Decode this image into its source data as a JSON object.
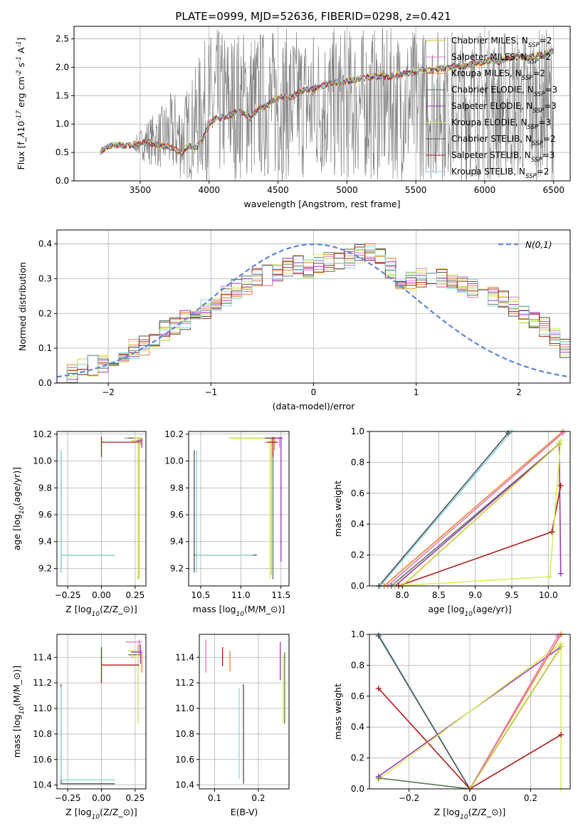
{
  "figure_title": "PLATE=0999, MJD=52636, FIBERID=0298, z=0.421",
  "colors": {
    "data": "#808080",
    "grid": "#b0b0b0",
    "normal_curve": "#5b86d8"
  },
  "models": [
    {
      "label": "Chabrier MILES, N$_{SSP}$=2",
      "name": "Chabrier MILES",
      "nssp": "2",
      "color": "#c8c832"
    },
    {
      "label": "Salpeter MILES, N$_{SSP}$=2",
      "name": "Salpeter MILES",
      "nssp": "2",
      "color": "#e377c2"
    },
    {
      "label": "Kroupa MILES, N$_{SSP}$=2",
      "name": "Kroupa MILES",
      "nssp": "2",
      "color": "#ef7f2a"
    },
    {
      "label": "Chabrier ELODIE, N$_{SSP}$=3",
      "name": "Chabrier ELODIE",
      "nssp": "3",
      "color": "#5a7a5a"
    },
    {
      "label": "Salpeter ELODIE, N$_{SSP}$=3",
      "name": "Salpeter ELODIE",
      "nssp": "3",
      "color": "#9c36b5"
    },
    {
      "label": "Kroupa ELODIE, N$_{SSP}$=3",
      "name": "Kroupa ELODIE",
      "nssp": "3",
      "color": "#d6f05a"
    },
    {
      "label": "Chabrier STELIB, N$_{SSP}$=2",
      "name": "Chabrier STELIB",
      "nssp": "2",
      "color": "#505050"
    },
    {
      "label": "Salpeter STELIB, N$_{SSP}$=3",
      "name": "Salpeter STELIB",
      "nssp": "3",
      "color": "#b01a1a"
    },
    {
      "label": "Kroupa STELIB, N$_{SSP}$=2",
      "name": "Kroupa STELIB",
      "nssp": "2",
      "color": "#8ad8e0"
    }
  ],
  "chart_data": [
    {
      "id": "spectrum",
      "type": "line",
      "xlabel": "wavelength [Angstrom, rest frame]",
      "ylabel": "Flux [f$_\\lambda$10$^{-17}$ erg cm$^{-2}$ s$^{-1}$ A$^{-1}$]",
      "xlim": [
        3020,
        6620
      ],
      "ylim": [
        0,
        2.72
      ],
      "xticks": [
        3500,
        4000,
        4500,
        5000,
        5500,
        6000,
        6500
      ],
      "yticks": [
        0.0,
        0.5,
        1.0,
        1.5,
        2.0,
        2.5
      ],
      "legend": "top-right",
      "x": [
        3210,
        3250,
        3300,
        3350,
        3400,
        3450,
        3500,
        3550,
        3600,
        3650,
        3700,
        3750,
        3800,
        3850,
        3900,
        3950,
        4000,
        4050,
        4100,
        4150,
        4200,
        4250,
        4300,
        4350,
        4400,
        4450,
        4500,
        4550,
        4600,
        4650,
        4700,
        4750,
        4800,
        4850,
        4900,
        4950,
        5000,
        5050,
        5100,
        5150,
        5200,
        5250,
        5300,
        5350,
        5400,
        5450,
        5500,
        5550,
        5600,
        5650,
        5700,
        5750,
        5800,
        5850,
        5900,
        5950,
        6000,
        6050,
        6100,
        6150,
        6200,
        6250,
        6300,
        6350,
        6400,
        6450,
        6500
      ],
      "model_flux": [
        0.52,
        0.58,
        0.62,
        0.63,
        0.61,
        0.63,
        0.66,
        0.68,
        0.65,
        0.62,
        0.6,
        0.55,
        0.5,
        0.62,
        0.58,
        0.7,
        1.0,
        1.1,
        1.12,
        1.15,
        1.22,
        1.2,
        1.1,
        1.25,
        1.3,
        1.4,
        1.45,
        1.5,
        1.48,
        1.55,
        1.6,
        1.62,
        1.65,
        1.7,
        1.72,
        1.74,
        1.75,
        1.78,
        1.8,
        1.82,
        1.84,
        1.85,
        1.82,
        1.86,
        1.88,
        1.9,
        1.92,
        1.95,
        1.94,
        1.96,
        1.98,
        2.0,
        2.02,
        2.0,
        2.05,
        2.08,
        2.1,
        2.12,
        2.1,
        2.15,
        2.18,
        2.2,
        2.15,
        2.2,
        2.22,
        2.25,
        2.28
      ],
      "observed_envelope_top": [
        0.55,
        0.65,
        0.68,
        0.7,
        0.68,
        0.72,
        0.9,
        1.1,
        1.2,
        1.3,
        1.5,
        1.6,
        1.5,
        1.7,
        2.0,
        2.4,
        2.6,
        2.7,
        2.7,
        2.7,
        2.7,
        2.7,
        2.7,
        2.7,
        2.7,
        2.7,
        2.7,
        2.7,
        2.7,
        2.7,
        2.7,
        2.7,
        2.7,
        2.7,
        2.7,
        2.7,
        2.7,
        2.7,
        2.7,
        2.7,
        2.7,
        2.7,
        2.7,
        2.7,
        2.7,
        2.7,
        2.7,
        2.7,
        2.7,
        2.7,
        2.7,
        2.7,
        2.7,
        2.7,
        2.7,
        2.7,
        2.7,
        2.7,
        2.7,
        2.7,
        2.7,
        2.7,
        2.7,
        2.7,
        2.7,
        2.7,
        2.7
      ],
      "observed_envelope_bottom": [
        0.5,
        0.55,
        0.58,
        0.58,
        0.55,
        0.55,
        0.4,
        0.3,
        0.25,
        0.2,
        0.1,
        0.05,
        0.0,
        0.0,
        0.0,
        0.0,
        0.0,
        0.0,
        0.0,
        0.0,
        0.0,
        0.0,
        0.0,
        0.0,
        0.0,
        0.0,
        0.0,
        0.0,
        0.0,
        0.0,
        0.0,
        0.0,
        0.0,
        0.0,
        0.0,
        0.0,
        0.0,
        0.0,
        0.0,
        0.0,
        0.0,
        0.0,
        0.0,
        0.0,
        0.0,
        0.0,
        0.0,
        0.0,
        0.0,
        0.0,
        0.0,
        0.0,
        0.0,
        0.0,
        0.0,
        0.0,
        0.0,
        0.0,
        0.0,
        0.0,
        0.0,
        0.0,
        0.0,
        0.0,
        0.0,
        0.0,
        0.0
      ]
    },
    {
      "id": "residuals",
      "type": "step",
      "xlabel": "(data-model)/error",
      "ylabel": "Normed distribution",
      "xlim": [
        -2.5,
        2.5
      ],
      "ylim": [
        0,
        0.44
      ],
      "xticks": [
        -2,
        -1,
        0,
        1,
        2
      ],
      "yticks": [
        0.0,
        0.1,
        0.2,
        0.3,
        0.4
      ],
      "legend": "top-right",
      "normal_label": "$\\mathcal{N}(0,1)$",
      "bin_edges_start": -2.5,
      "bin_width": 0.1,
      "histogram": [
        0.03,
        0.03,
        0.04,
        0.05,
        0.06,
        0.07,
        0.09,
        0.1,
        0.11,
        0.13,
        0.15,
        0.17,
        0.18,
        0.19,
        0.21,
        0.23,
        0.25,
        0.27,
        0.28,
        0.3,
        0.31,
        0.32,
        0.33,
        0.34,
        0.33,
        0.34,
        0.35,
        0.35,
        0.36,
        0.37,
        0.38,
        0.36,
        0.33,
        0.3,
        0.29,
        0.3,
        0.31,
        0.3,
        0.29,
        0.28,
        0.27,
        0.26,
        0.25,
        0.24,
        0.22,
        0.2,
        0.18,
        0.16,
        0.13,
        0.1
      ]
    },
    {
      "id": "age_vs_Z",
      "type": "errorbar",
      "xlabel": "Z [log$_{10}$(Z/Z$_\\odot$)]",
      "ylabel": "age  [log$_{10}$(age/yr)]",
      "xlim": [
        -0.33,
        0.33
      ],
      "ylim": [
        9.07,
        10.22
      ],
      "xticks": [
        -0.25,
        0.0,
        0.25
      ],
      "yticks": [
        9.2,
        9.4,
        9.6,
        9.8,
        10.0,
        10.2
      ]
    },
    {
      "id": "age_vs_mass",
      "type": "errorbar",
      "xlabel": "mass [log$_{10}$(M/M$_\\odot$)]",
      "xlim": [
        10.35,
        11.6
      ],
      "ylim": [
        9.07,
        10.22
      ],
      "xticks": [
        10.5,
        11.0,
        11.5
      ],
      "yticks": [
        9.2,
        9.4,
        9.6,
        9.8,
        10.0,
        10.2
      ]
    },
    {
      "id": "weight_vs_age",
      "type": "line",
      "xlabel": "age  [log$_{10}$(age/yr)]",
      "ylabel": "mass weight",
      "xlim": [
        7.55,
        10.3
      ],
      "ylim": [
        0,
        1.0
      ],
      "xticks": [
        8.0,
        8.5,
        9.0,
        9.5,
        10.0
      ],
      "yticks": [
        0.0,
        0.2,
        0.4,
        0.6,
        0.8,
        1.0
      ]
    },
    {
      "id": "mass_vs_Z",
      "type": "errorbar",
      "xlabel": "Z [log$_{10}$(Z/Z$_\\odot$)]",
      "ylabel": "mass [log$_{10}$(M/M$_\\odot$)]",
      "xlim": [
        -0.33,
        0.33
      ],
      "ylim": [
        10.37,
        11.58
      ],
      "xticks": [
        -0.25,
        0.0,
        0.25
      ],
      "yticks": [
        10.4,
        10.6,
        10.8,
        11.0,
        11.2,
        11.4
      ]
    },
    {
      "id": "mass_vs_ebv",
      "type": "errorbar",
      "xlabel": "E(B-V)",
      "xlim": [
        0.065,
        0.27
      ],
      "ylim": [
        10.37,
        11.58
      ],
      "xticks": [
        0.1,
        0.2
      ],
      "yticks": [
        10.4,
        10.6,
        10.8,
        11.0,
        11.2,
        11.4
      ]
    },
    {
      "id": "weight_vs_Z",
      "type": "line",
      "xlabel": "Z [log$_{10}$(Z/Z$_\\odot$)]",
      "ylabel": "mass weight",
      "xlim": [
        -0.33,
        0.33
      ],
      "ylim": [
        0,
        1.0
      ],
      "xticks": [
        -0.2,
        0.0,
        0.2
      ],
      "yticks": [
        0.0,
        0.2,
        0.4,
        0.6,
        0.8,
        1.0
      ]
    }
  ],
  "panel_marks": {
    "age_vs_Z": [
      {
        "m": 1,
        "x": 0.27,
        "y": 10.17,
        "xl": 0.17,
        "xh": 0.3,
        "yl": 10.12,
        "yh": 10.17
      },
      {
        "m": 2,
        "x": 0.29,
        "y": 10.17,
        "xl": 0.22,
        "xh": 0.3,
        "yl": 10.12,
        "yh": 10.17
      },
      {
        "m": 0,
        "x": 0.28,
        "y": 10.15,
        "xl": 0.22,
        "xh": 0.3,
        "yl": 9.12,
        "yh": 10.18
      },
      {
        "m": 3,
        "x": 0.27,
        "y": 10.17,
        "xl": 0.2,
        "xh": 0.29,
        "yl": 9.12,
        "yh": 10.17
      },
      {
        "m": 5,
        "x": 0.27,
        "y": 10.17,
        "xl": 0.24,
        "xh": 0.3,
        "yl": 9.12,
        "yh": 10.17
      },
      {
        "m": 4,
        "x": 0.3,
        "y": 10.15,
        "xl": 0.26,
        "xh": 0.3,
        "yl": 10.1,
        "yh": 10.17
      },
      {
        "m": 7,
        "x": 0.0,
        "y": 10.14,
        "xl": 0.0,
        "xh": 0.28,
        "yl": 10.03,
        "yh": 10.18
      },
      {
        "m": 6,
        "x": -0.3,
        "y": 9.3,
        "xl": -0.3,
        "xh": 0.1,
        "yl": 9.17,
        "yh": 10.08
      },
      {
        "m": 8,
        "x": -0.3,
        "y": 9.3,
        "xl": -0.3,
        "xh": 0.1,
        "yl": 9.17,
        "yh": 10.08
      }
    ],
    "age_vs_mass": [
      {
        "m": 1,
        "x": 11.48,
        "y": 10.17,
        "xl": 11.25,
        "xh": 11.52,
        "yl": 10.1,
        "yh": 10.18
      },
      {
        "m": 2,
        "x": 11.42,
        "y": 10.14,
        "xl": 11.3,
        "xh": 11.46,
        "yl": 10.08,
        "yh": 10.18
      },
      {
        "m": 0,
        "x": 11.38,
        "y": 10.17,
        "xl": 11.1,
        "xh": 11.45,
        "yl": 9.15,
        "yh": 10.18
      },
      {
        "m": 3,
        "x": 11.4,
        "y": 10.17,
        "xl": 10.85,
        "xh": 11.42,
        "yl": 9.12,
        "yh": 10.18
      },
      {
        "m": 5,
        "x": 11.36,
        "y": 10.17,
        "xl": 10.85,
        "xh": 11.4,
        "yl": 9.12,
        "yh": 10.18
      },
      {
        "m": 4,
        "x": 11.5,
        "y": 10.17,
        "xl": 11.3,
        "xh": 11.52,
        "yl": 9.25,
        "yh": 10.18
      },
      {
        "m": 7,
        "x": 11.4,
        "y": 10.14,
        "xl": 11.33,
        "xh": 11.46,
        "yl": 10.03,
        "yh": 10.18
      },
      {
        "m": 6,
        "x": 10.42,
        "y": 9.3,
        "xl": 10.42,
        "xh": 11.2,
        "yl": 9.17,
        "yh": 10.08
      },
      {
        "m": 8,
        "x": 10.45,
        "y": 9.3,
        "xl": 10.44,
        "xh": 11.15,
        "yl": 9.17,
        "yh": 10.08
      }
    ],
    "mass_vs_Z": [
      {
        "m": 1,
        "x": 0.28,
        "y": 11.52,
        "xl": 0.18,
        "xh": 0.3,
        "yl": 11.43,
        "yh": 11.54
      },
      {
        "m": 0,
        "x": 0.27,
        "y": 11.45,
        "xl": 0.2,
        "xh": 0.3,
        "yl": 11.3,
        "yh": 11.5
      },
      {
        "m": 2,
        "x": 0.3,
        "y": 11.4,
        "xl": 0.22,
        "xh": 0.3,
        "yl": 11.28,
        "yh": 11.44
      },
      {
        "m": 3,
        "x": 0.27,
        "y": 11.42,
        "xl": 0.2,
        "xh": 0.29,
        "yl": 10.88,
        "yh": 11.45
      },
      {
        "m": 5,
        "x": 0.27,
        "y": 11.4,
        "xl": 0.24,
        "xh": 0.3,
        "yl": 10.88,
        "yh": 11.45
      },
      {
        "m": 4,
        "x": 0.29,
        "y": 11.44,
        "xl": 0.22,
        "xh": 0.3,
        "yl": 11.35,
        "yh": 11.5
      },
      {
        "m": 7,
        "x": 0.0,
        "y": 11.34,
        "xl": 0.0,
        "xh": 0.28,
        "yl": 11.2,
        "yh": 11.48
      },
      {
        "m": 6,
        "x": -0.3,
        "y": 10.41,
        "xl": -0.3,
        "xh": 0.1,
        "yl": 10.41,
        "yh": 11.19
      },
      {
        "m": 8,
        "x": -0.3,
        "y": 10.44,
        "xl": -0.3,
        "xh": 0.1,
        "yl": 10.44,
        "yh": 11.17
      }
    ],
    "mass_vs_ebv": [
      {
        "m": 1,
        "x": 0.08,
        "y": 11.45,
        "xl": 0.08,
        "xh": 0.08,
        "yl": 11.28,
        "yh": 11.54
      },
      {
        "m": 7,
        "x": 0.118,
        "y": 11.4,
        "xl": 0.118,
        "xh": 0.118,
        "yl": 11.33,
        "yh": 11.48
      },
      {
        "m": 2,
        "x": 0.135,
        "y": 11.38,
        "xl": 0.135,
        "xh": 0.135,
        "yl": 11.29,
        "yh": 11.45
      },
      {
        "m": 8,
        "x": 0.156,
        "y": 10.8,
        "xl": 0.156,
        "xh": 0.156,
        "yl": 10.45,
        "yh": 11.16
      },
      {
        "m": 6,
        "x": 0.166,
        "y": 10.8,
        "xl": 0.166,
        "xh": 0.166,
        "yl": 10.41,
        "yh": 11.19
      },
      {
        "m": 4,
        "x": 0.25,
        "y": 11.38,
        "xl": 0.25,
        "xh": 0.25,
        "yl": 11.22,
        "yh": 11.52
      },
      {
        "m": 5,
        "x": 0.257,
        "y": 11.1,
        "xl": 0.257,
        "xh": 0.257,
        "yl": 10.88,
        "yh": 11.42
      },
      {
        "m": 3,
        "x": 0.26,
        "y": 11.1,
        "xl": 0.26,
        "xh": 0.26,
        "yl": 10.88,
        "yh": 11.44
      }
    ],
    "weight_vs_age": [
      {
        "m": 8,
        "pts": [
          [
            7.7,
            0.0
          ],
          [
            9.5,
            1.0
          ]
        ]
      },
      {
        "m": 6,
        "pts": [
          [
            7.68,
            0.0
          ],
          [
            9.45,
            0.99
          ]
        ]
      },
      {
        "m": 2,
        "pts": [
          [
            7.75,
            0.0
          ],
          [
            10.2,
            1.0
          ]
        ]
      },
      {
        "m": 1,
        "pts": [
          [
            7.8,
            0.0
          ],
          [
            10.2,
            0.99
          ]
        ]
      },
      {
        "m": 3,
        "pts": [
          [
            7.85,
            0.0
          ],
          [
            10.15,
            0.92
          ]
        ]
      },
      {
        "m": 4,
        "pts": [
          [
            7.9,
            0.0
          ],
          [
            10.15,
            0.92
          ],
          [
            10.17,
            0.08
          ]
        ]
      },
      {
        "m": 7,
        "pts": [
          [
            7.95,
            0.0
          ],
          [
            10.05,
            0.35
          ],
          [
            10.17,
            0.65
          ]
        ]
      },
      {
        "m": 5,
        "pts": [
          [
            7.9,
            0.0
          ],
          [
            10.02,
            0.06
          ],
          [
            10.17,
            0.94
          ]
        ]
      },
      {
        "m": 0,
        "pts": [
          [
            8.0,
            0.0
          ],
          [
            10.15,
            0.92
          ]
        ]
      }
    ],
    "weight_vs_Z": [
      {
        "m": 8,
        "pts": [
          [
            -0.3,
            1.0
          ],
          [
            0.0,
            0.0
          ]
        ]
      },
      {
        "m": 6,
        "pts": [
          [
            -0.3,
            0.99
          ],
          [
            0.0,
            0.0
          ]
        ]
      },
      {
        "m": 7,
        "pts": [
          [
            -0.3,
            0.65
          ],
          [
            0.0,
            0.0
          ],
          [
            0.3,
            0.35
          ]
        ]
      },
      {
        "m": 4,
        "pts": [
          [
            -0.3,
            0.08
          ],
          [
            0.3,
            0.92
          ]
        ]
      },
      {
        "m": 5,
        "pts": [
          [
            -0.3,
            0.06
          ],
          [
            0.3,
            0.94
          ],
          [
            0.3,
            0.0
          ]
        ]
      },
      {
        "m": 3,
        "pts": [
          [
            -0.3,
            0.07
          ],
          [
            0.0,
            0.0
          ],
          [
            0.3,
            0.92
          ]
        ]
      },
      {
        "m": 2,
        "pts": [
          [
            0.0,
            0.0
          ],
          [
            0.3,
            1.0
          ]
        ]
      },
      {
        "m": 1,
        "pts": [
          [
            0.0,
            0.0
          ],
          [
            0.29,
            0.99
          ]
        ]
      },
      {
        "m": 0,
        "pts": [
          [
            0.0,
            0.0
          ],
          [
            0.3,
            0.92
          ]
        ]
      }
    ]
  }
}
